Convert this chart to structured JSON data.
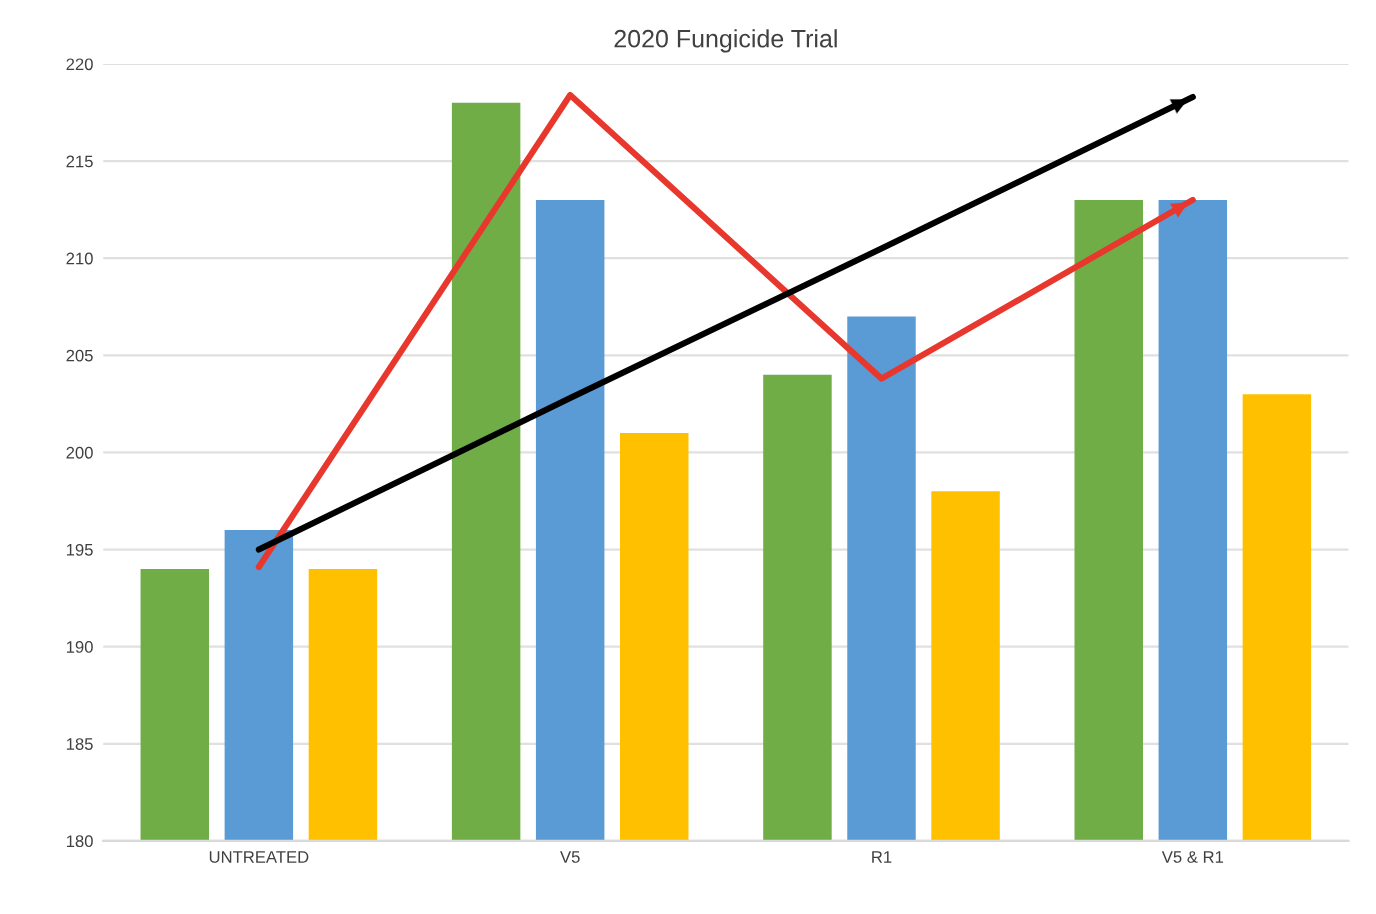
{
  "chart_data": {
    "type": "bar",
    "title": "2020 Fungicide Trial",
    "categories": [
      "UNTREATED",
      "V5",
      "R1",
      "V5 & R1"
    ],
    "series": [
      {
        "color": "#70ad47",
        "values": [
          194,
          218,
          204,
          213
        ]
      },
      {
        "color": "#5b9bd5",
        "values": [
          196,
          213,
          207,
          213
        ]
      },
      {
        "color": "#ffc000",
        "values": [
          194,
          201,
          198,
          203
        ]
      },
      {
        "type": "line",
        "color": "#e8382e",
        "values": [
          194.1,
          218.4,
          203.8,
          213
        ]
      },
      {
        "type": "line",
        "color": "#000000",
        "values": [
          195.0,
          202.8,
          210.5,
          218.3
        ]
      }
    ],
    "ylim": [
      180,
      220
    ],
    "yticks": [
      180,
      185,
      190,
      195,
      200,
      205,
      210,
      215,
      220
    ],
    "grid": "y"
  }
}
